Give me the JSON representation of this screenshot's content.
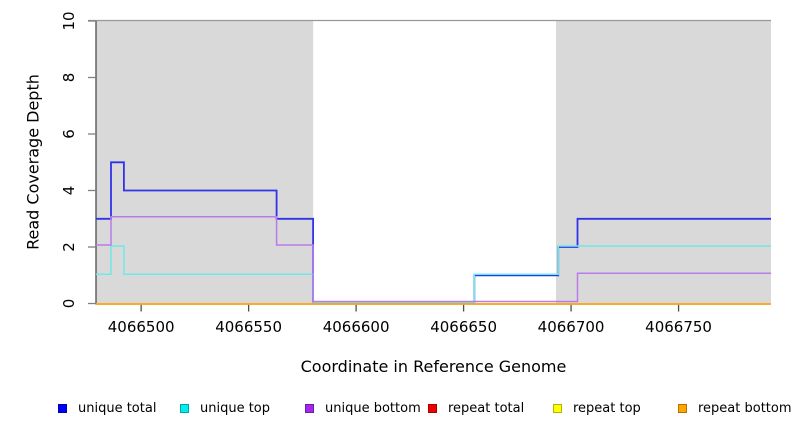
{
  "chart_data": {
    "type": "line",
    "subtype": "step",
    "title": "",
    "xlabel": "Coordinate in Reference Genome",
    "ylabel": "Read Coverage Depth",
    "xlim": [
      4066479,
      4066793
    ],
    "ylim": [
      0,
      10
    ],
    "x_ticks": [
      4066500,
      4066550,
      4066600,
      4066650,
      4066700,
      4066750
    ],
    "y_ticks": [
      0,
      2,
      4,
      6,
      8,
      10
    ],
    "grid": false,
    "legend_position": "bottom",
    "plot_background": "#ffffff",
    "shaded_regions": [
      {
        "x0": 4066479,
        "x1": 4066580,
        "color": "#d9d9d9"
      },
      {
        "x0": 4066693,
        "x1": 4066793,
        "color": "#d9d9d9"
      }
    ],
    "series": [
      {
        "name": "unique total",
        "color": "#0000fa",
        "line_color": "#3232e6",
        "start_value": 3,
        "steps": [
          [
            4066486,
            5
          ],
          [
            4066492,
            4
          ],
          [
            4066563,
            3
          ],
          [
            4066580,
            0
          ],
          [
            4066655,
            1
          ],
          [
            4066694,
            2
          ],
          [
            4066703,
            3
          ]
        ]
      },
      {
        "name": "unique top",
        "color": "#00eeee",
        "line_color": "#70e8e8",
        "start_value": 1,
        "steps": [
          [
            4066486,
            2
          ],
          [
            4066492,
            1
          ],
          [
            4066580,
            0
          ],
          [
            4066655,
            1
          ],
          [
            4066694,
            2
          ]
        ]
      },
      {
        "name": "unique bottom",
        "color": "#a228f0",
        "line_color": "#ba7bea",
        "start_value": 2,
        "steps": [
          [
            4066486,
            3
          ],
          [
            4066563,
            2
          ],
          [
            4066580,
            0
          ],
          [
            4066703,
            1
          ]
        ]
      },
      {
        "name": "repeat total",
        "color": "#ee0000",
        "line_color": "#e04040",
        "start_value": 0,
        "steps": []
      },
      {
        "name": "repeat top",
        "color": "#ffff00",
        "line_color": "#f0f000",
        "start_value": 0,
        "steps": []
      },
      {
        "name": "repeat bottom",
        "color": "#ffa500",
        "line_color": "#ffa41e",
        "start_value": 0,
        "steps": []
      }
    ]
  }
}
